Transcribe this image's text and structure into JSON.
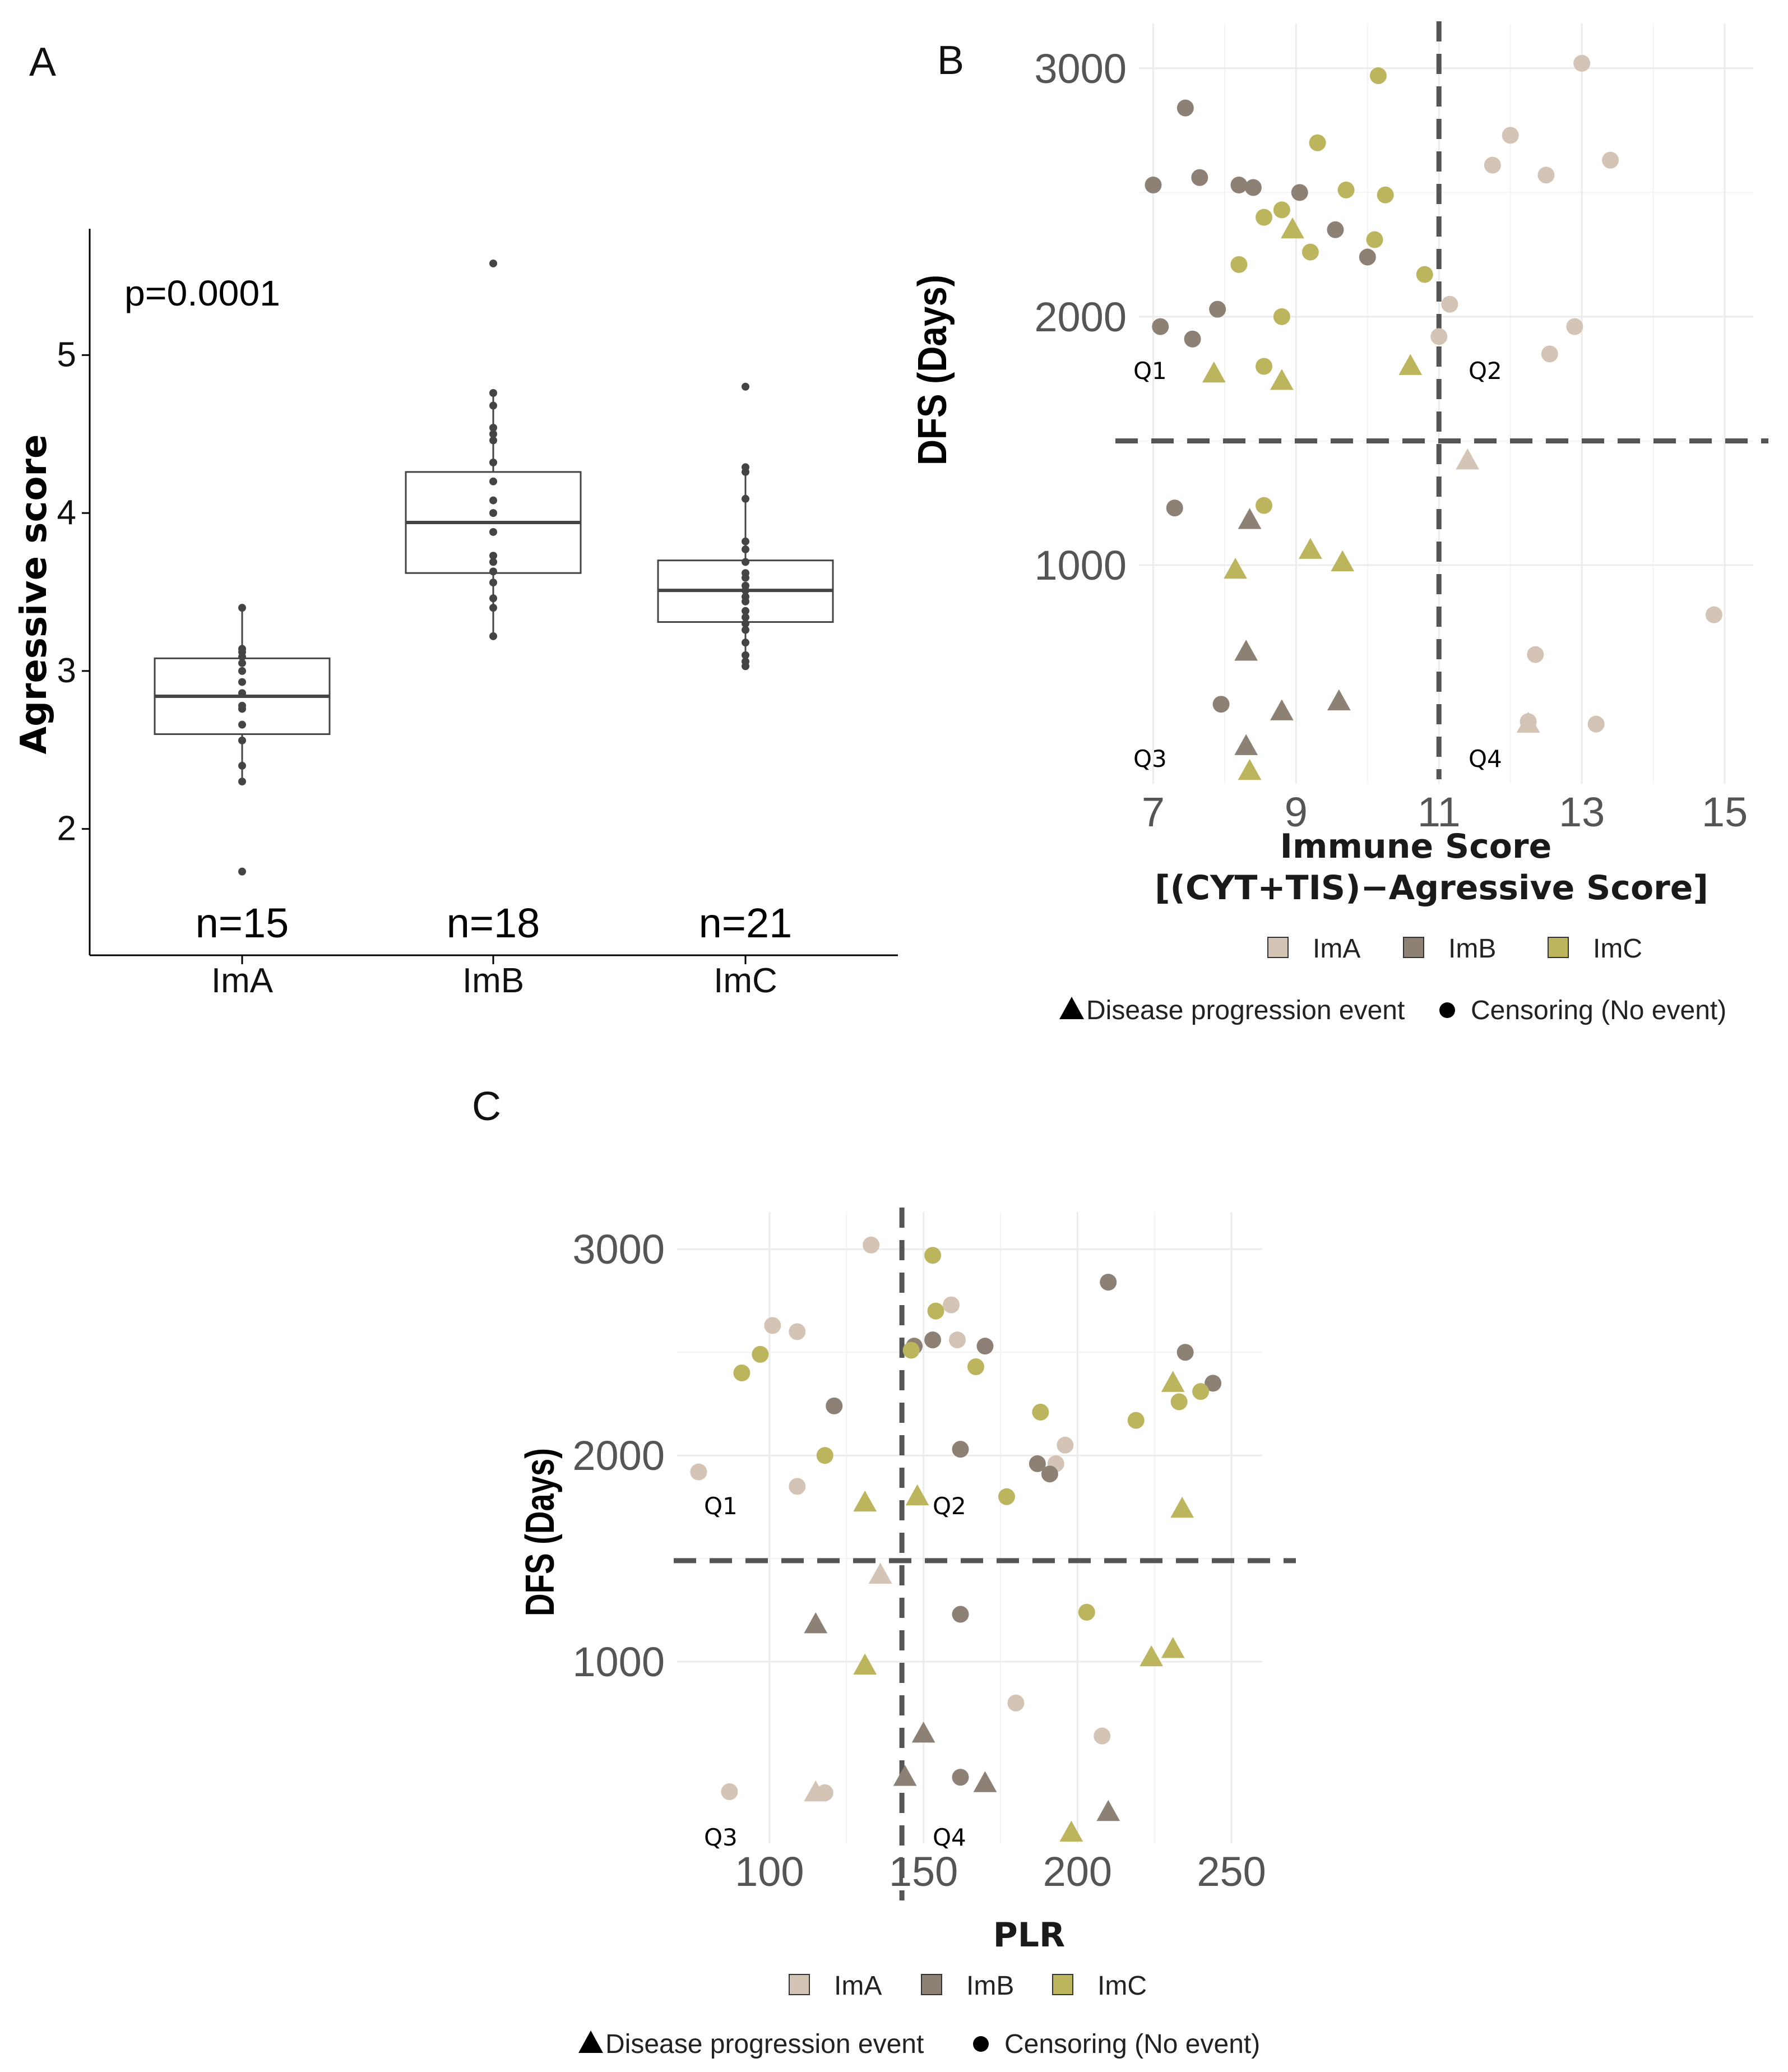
{
  "figure": {
    "panel_letters": {
      "a": "A",
      "b": "B",
      "c": "C"
    },
    "colors": {
      "ImA": "#d4c4b5",
      "ImB": "#8d8176",
      "ImC": "#bdb55e",
      "box": "#444444",
      "dashed": "#555555",
      "grid": "#ececec"
    },
    "shape_legend": {
      "event_label": "Disease progression event",
      "censor_label": "Censoring (No event)"
    }
  },
  "chart_data": [
    {
      "id": "A",
      "type": "box",
      "title": "",
      "xlabel": "",
      "ylabel": "Agressive score",
      "annotation": "p=0.0001",
      "ylim": [
        1.2,
        5.8
      ],
      "yticks": [
        2,
        3,
        4,
        5
      ],
      "categories": [
        "ImA",
        "ImB",
        "ImC"
      ],
      "counts": [
        "n=15",
        "n=18",
        "n=21"
      ],
      "boxes": [
        {
          "group": "ImA",
          "q1": 2.6,
          "median": 2.84,
          "q3": 3.08,
          "whisker_low": 2.3,
          "whisker_high": 3.4,
          "points": [
            1.73,
            2.3,
            2.4,
            2.56,
            2.66,
            2.76,
            2.78,
            2.86,
            2.93,
            3.0,
            3.05,
            3.09,
            3.12,
            3.14,
            3.4
          ]
        },
        {
          "group": "ImB",
          "q1": 3.62,
          "median": 3.94,
          "q3": 4.26,
          "whisker_low": 3.22,
          "whisker_high": 4.76,
          "points": [
            3.22,
            3.4,
            3.46,
            3.56,
            3.63,
            3.69,
            3.73,
            3.88,
            4.0,
            4.08,
            4.2,
            4.32,
            4.46,
            4.5,
            4.54,
            4.68,
            4.76,
            5.58
          ]
        },
        {
          "group": "ImC",
          "q1": 3.31,
          "median": 3.51,
          "q3": 3.7,
          "whisker_low": 3.03,
          "whisker_high": 4.29,
          "points": [
            3.03,
            3.06,
            3.1,
            3.18,
            3.26,
            3.3,
            3.34,
            3.38,
            3.44,
            3.47,
            3.51,
            3.54,
            3.59,
            3.62,
            3.69,
            3.77,
            3.82,
            4.09,
            4.26,
            4.29,
            4.8
          ]
        }
      ]
    },
    {
      "id": "B",
      "type": "scatter",
      "xlabel_line1": "Immune Score",
      "xlabel_line2": "[(CYT+TIS)−Agressive Score]",
      "ylabel": "DFS (Days)",
      "xlim": [
        6.8,
        15.4
      ],
      "ylim": [
        120,
        3180
      ],
      "xticks": [
        7,
        9,
        11,
        13,
        15
      ],
      "yticks": [
        1000,
        2000,
        3000
      ],
      "quadrant_lines": {
        "x": 11.0,
        "y": 1500
      },
      "quadrant_labels": [
        "Q1",
        "Q2",
        "Q3",
        "Q4"
      ],
      "legend": [
        "ImA",
        "ImB",
        "ImC"
      ],
      "points": [
        {
          "x": 13.0,
          "y": 3020,
          "g": "ImA",
          "s": "c"
        },
        {
          "x": 12.0,
          "y": 2730,
          "g": "ImA",
          "s": "c"
        },
        {
          "x": 11.75,
          "y": 2610,
          "g": "ImA",
          "s": "c"
        },
        {
          "x": 13.4,
          "y": 2630,
          "g": "ImA",
          "s": "c"
        },
        {
          "x": 12.5,
          "y": 2570,
          "g": "ImA",
          "s": "c"
        },
        {
          "x": 11.15,
          "y": 2050,
          "g": "ImA",
          "s": "c"
        },
        {
          "x": 12.9,
          "y": 1960,
          "g": "ImA",
          "s": "c"
        },
        {
          "x": 11.0,
          "y": 1920,
          "g": "ImA",
          "s": "c"
        },
        {
          "x": 12.55,
          "y": 1850,
          "g": "ImA",
          "s": "c"
        },
        {
          "x": 11.4,
          "y": 1420,
          "g": "ImA",
          "s": "t"
        },
        {
          "x": 14.85,
          "y": 800,
          "g": "ImA",
          "s": "c"
        },
        {
          "x": 12.35,
          "y": 640,
          "g": "ImA",
          "s": "c"
        },
        {
          "x": 12.25,
          "y": 370,
          "g": "ImA",
          "s": "c"
        },
        {
          "x": 12.25,
          "y": 360,
          "g": "ImA",
          "s": "t"
        },
        {
          "x": 13.2,
          "y": 360,
          "g": "ImA",
          "s": "c"
        },
        {
          "x": 7.45,
          "y": 2840,
          "g": "ImB",
          "s": "c"
        },
        {
          "x": 7.0,
          "y": 2530,
          "g": "ImB",
          "s": "c"
        },
        {
          "x": 7.65,
          "y": 2560,
          "g": "ImB",
          "s": "c"
        },
        {
          "x": 8.2,
          "y": 2530,
          "g": "ImB",
          "s": "c"
        },
        {
          "x": 8.4,
          "y": 2520,
          "g": "ImB",
          "s": "c"
        },
        {
          "x": 9.05,
          "y": 2500,
          "g": "ImB",
          "s": "c"
        },
        {
          "x": 9.55,
          "y": 2350,
          "g": "ImB",
          "s": "c"
        },
        {
          "x": 10.0,
          "y": 2240,
          "g": "ImB",
          "s": "c"
        },
        {
          "x": 7.1,
          "y": 1960,
          "g": "ImB",
          "s": "c"
        },
        {
          "x": 7.55,
          "y": 1910,
          "g": "ImB",
          "s": "c"
        },
        {
          "x": 7.9,
          "y": 2030,
          "g": "ImB",
          "s": "c"
        },
        {
          "x": 7.3,
          "y": 1230,
          "g": "ImB",
          "s": "c"
        },
        {
          "x": 8.35,
          "y": 1180,
          "g": "ImB",
          "s": "t"
        },
        {
          "x": 8.3,
          "y": 650,
          "g": "ImB",
          "s": "t"
        },
        {
          "x": 7.95,
          "y": 440,
          "g": "ImB",
          "s": "c"
        },
        {
          "x": 8.8,
          "y": 410,
          "g": "ImB",
          "s": "t"
        },
        {
          "x": 9.6,
          "y": 450,
          "g": "ImB",
          "s": "t"
        },
        {
          "x": 8.3,
          "y": 270,
          "g": "ImB",
          "s": "t"
        },
        {
          "x": 10.15,
          "y": 2970,
          "g": "ImC",
          "s": "c"
        },
        {
          "x": 9.3,
          "y": 2700,
          "g": "ImC",
          "s": "c"
        },
        {
          "x": 9.7,
          "y": 2510,
          "g": "ImC",
          "s": "c"
        },
        {
          "x": 10.25,
          "y": 2490,
          "g": "ImC",
          "s": "c"
        },
        {
          "x": 8.8,
          "y": 2430,
          "g": "ImC",
          "s": "c"
        },
        {
          "x": 8.55,
          "y": 2400,
          "g": "ImC",
          "s": "c"
        },
        {
          "x": 8.95,
          "y": 2350,
          "g": "ImC",
          "s": "t"
        },
        {
          "x": 10.1,
          "y": 2310,
          "g": "ImC",
          "s": "c"
        },
        {
          "x": 9.2,
          "y": 2260,
          "g": "ImC",
          "s": "c"
        },
        {
          "x": 8.2,
          "y": 2210,
          "g": "ImC",
          "s": "c"
        },
        {
          "x": 10.8,
          "y": 2170,
          "g": "ImC",
          "s": "c"
        },
        {
          "x": 8.8,
          "y": 2000,
          "g": "ImC",
          "s": "c"
        },
        {
          "x": 8.55,
          "y": 1800,
          "g": "ImC",
          "s": "c"
        },
        {
          "x": 7.85,
          "y": 1770,
          "g": "ImC",
          "s": "t"
        },
        {
          "x": 8.8,
          "y": 1740,
          "g": "ImC",
          "s": "t"
        },
        {
          "x": 10.6,
          "y": 1800,
          "g": "ImC",
          "s": "t"
        },
        {
          "x": 8.55,
          "y": 1240,
          "g": "ImC",
          "s": "c"
        },
        {
          "x": 9.2,
          "y": 1060,
          "g": "ImC",
          "s": "t"
        },
        {
          "x": 9.65,
          "y": 1010,
          "g": "ImC",
          "s": "t"
        },
        {
          "x": 8.15,
          "y": 980,
          "g": "ImC",
          "s": "t"
        },
        {
          "x": 8.35,
          "y": 170,
          "g": "ImC",
          "s": "t"
        }
      ]
    },
    {
      "id": "C",
      "type": "scatter",
      "xlabel": "PLR",
      "ylabel": "DFS (Days)",
      "xlim": [
        70,
        260
      ],
      "ylim": [
        120,
        3180
      ],
      "xticks": [
        100,
        150,
        200,
        250
      ],
      "yticks": [
        1000,
        2000,
        3000
      ],
      "quadrant_lines": {
        "x": 143,
        "y": 1490
      },
      "quadrant_labels": [
        "Q1",
        "Q2",
        "Q3",
        "Q4"
      ],
      "legend": [
        "ImA",
        "ImB",
        "ImC"
      ],
      "points": [
        {
          "x": 133,
          "y": 3020,
          "g": "ImA",
          "s": "c"
        },
        {
          "x": 101,
          "y": 2630,
          "g": "ImA",
          "s": "c"
        },
        {
          "x": 109,
          "y": 2600,
          "g": "ImA",
          "s": "c"
        },
        {
          "x": 159,
          "y": 2730,
          "g": "ImA",
          "s": "c"
        },
        {
          "x": 161,
          "y": 2560,
          "g": "ImA",
          "s": "c"
        },
        {
          "x": 77,
          "y": 1920,
          "g": "ImA",
          "s": "c"
        },
        {
          "x": 109,
          "y": 1850,
          "g": "ImA",
          "s": "c"
        },
        {
          "x": 196,
          "y": 2050,
          "g": "ImA",
          "s": "c"
        },
        {
          "x": 193,
          "y": 1960,
          "g": "ImA",
          "s": "c"
        },
        {
          "x": 136,
          "y": 1420,
          "g": "ImA",
          "s": "t"
        },
        {
          "x": 180,
          "y": 800,
          "g": "ImA",
          "s": "c"
        },
        {
          "x": 208,
          "y": 640,
          "g": "ImA",
          "s": "c"
        },
        {
          "x": 87,
          "y": 370,
          "g": "ImA",
          "s": "c"
        },
        {
          "x": 115,
          "y": 365,
          "g": "ImA",
          "s": "t"
        },
        {
          "x": 118,
          "y": 365,
          "g": "ImA",
          "s": "c"
        },
        {
          "x": 210,
          "y": 2840,
          "g": "ImB",
          "s": "c"
        },
        {
          "x": 147,
          "y": 2530,
          "g": "ImB",
          "s": "c"
        },
        {
          "x": 153,
          "y": 2560,
          "g": "ImB",
          "s": "c"
        },
        {
          "x": 170,
          "y": 2530,
          "g": "ImB",
          "s": "c"
        },
        {
          "x": 235,
          "y": 2500,
          "g": "ImB",
          "s": "c"
        },
        {
          "x": 244,
          "y": 2350,
          "g": "ImB",
          "s": "c"
        },
        {
          "x": 121,
          "y": 2240,
          "g": "ImB",
          "s": "c"
        },
        {
          "x": 162,
          "y": 2030,
          "g": "ImB",
          "s": "c"
        },
        {
          "x": 187,
          "y": 1960,
          "g": "ImB",
          "s": "c"
        },
        {
          "x": 191,
          "y": 1910,
          "g": "ImB",
          "s": "c"
        },
        {
          "x": 162,
          "y": 1230,
          "g": "ImB",
          "s": "c"
        },
        {
          "x": 115,
          "y": 1180,
          "g": "ImB",
          "s": "t"
        },
        {
          "x": 150,
          "y": 650,
          "g": "ImB",
          "s": "t"
        },
        {
          "x": 144,
          "y": 440,
          "g": "ImB",
          "s": "t"
        },
        {
          "x": 162,
          "y": 440,
          "g": "ImB",
          "s": "c"
        },
        {
          "x": 170,
          "y": 410,
          "g": "ImB",
          "s": "t"
        },
        {
          "x": 210,
          "y": 270,
          "g": "ImB",
          "s": "t"
        },
        {
          "x": 153,
          "y": 2970,
          "g": "ImC",
          "s": "c"
        },
        {
          "x": 154,
          "y": 2700,
          "g": "ImC",
          "s": "c"
        },
        {
          "x": 146,
          "y": 2510,
          "g": "ImC",
          "s": "c"
        },
        {
          "x": 97,
          "y": 2490,
          "g": "ImC",
          "s": "c"
        },
        {
          "x": 91,
          "y": 2400,
          "g": "ImC",
          "s": "c"
        },
        {
          "x": 167,
          "y": 2430,
          "g": "ImC",
          "s": "c"
        },
        {
          "x": 231,
          "y": 2350,
          "g": "ImC",
          "s": "t"
        },
        {
          "x": 240,
          "y": 2310,
          "g": "ImC",
          "s": "c"
        },
        {
          "x": 233,
          "y": 2260,
          "g": "ImC",
          "s": "c"
        },
        {
          "x": 188,
          "y": 2210,
          "g": "ImC",
          "s": "c"
        },
        {
          "x": 219,
          "y": 2170,
          "g": "ImC",
          "s": "c"
        },
        {
          "x": 118,
          "y": 2000,
          "g": "ImC",
          "s": "c"
        },
        {
          "x": 131,
          "y": 1770,
          "g": "ImC",
          "s": "t"
        },
        {
          "x": 148,
          "y": 1800,
          "g": "ImC",
          "s": "t"
        },
        {
          "x": 177,
          "y": 1800,
          "g": "ImC",
          "s": "c"
        },
        {
          "x": 234,
          "y": 1740,
          "g": "ImC",
          "s": "t"
        },
        {
          "x": 203,
          "y": 1240,
          "g": "ImC",
          "s": "c"
        },
        {
          "x": 231,
          "y": 1060,
          "g": "ImC",
          "s": "t"
        },
        {
          "x": 224,
          "y": 1020,
          "g": "ImC",
          "s": "t"
        },
        {
          "x": 131,
          "y": 980,
          "g": "ImC",
          "s": "t"
        },
        {
          "x": 198,
          "y": 170,
          "g": "ImC",
          "s": "t"
        }
      ]
    }
  ]
}
